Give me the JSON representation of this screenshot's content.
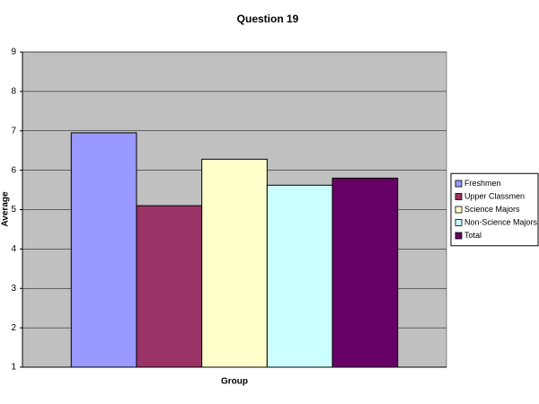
{
  "chart_data": {
    "type": "bar",
    "title": "Question 19",
    "xlabel": "Group",
    "ylabel": "Average",
    "categories": [
      null
    ],
    "series": [
      {
        "name": "Freshmen",
        "color": "#9999ff",
        "values": [
          6.95
        ]
      },
      {
        "name": "Upper Classmen",
        "color": "#993366",
        "values": [
          5.1
        ]
      },
      {
        "name": "Science Majors",
        "color": "#ffffcc",
        "values": [
          6.28
        ]
      },
      {
        "name": "Non-Science Majors",
        "color": "#ccffff",
        "values": [
          5.62
        ]
      },
      {
        "name": "Total",
        "color": "#660066",
        "values": [
          5.8
        ]
      }
    ],
    "ylim": [
      1,
      9
    ],
    "yticks": [
      1,
      2,
      3,
      4,
      5,
      6,
      7,
      8,
      9
    ],
    "grid": true,
    "legend": "right"
  }
}
